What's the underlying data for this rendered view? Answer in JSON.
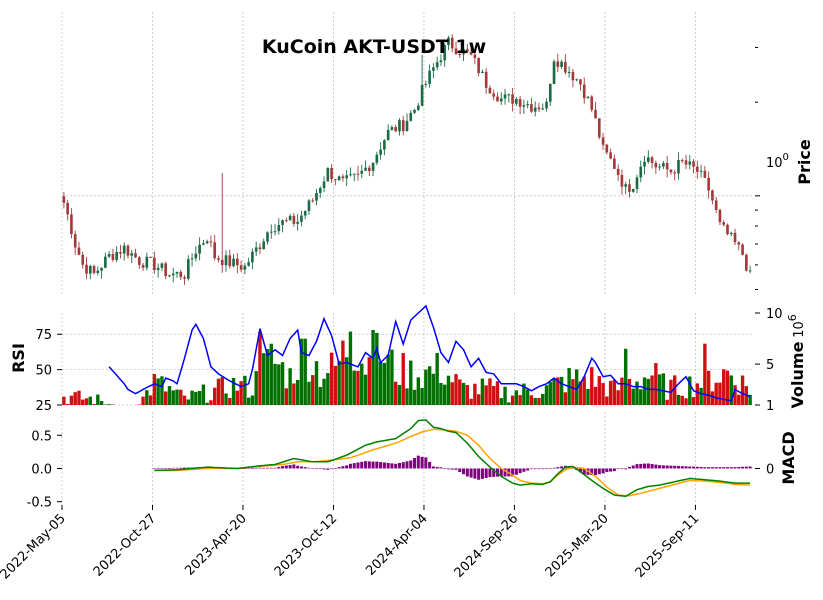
{
  "chart_data": {
    "type": "candlestick",
    "title": "KuCoin AKT-USDT 1w",
    "x_tick_labels": [
      "2022-May-05",
      "2022-Oct-27",
      "2023-Apr-20",
      "2023-Oct-12",
      "2024-Apr-04",
      "2024-Sep-26",
      "2025-Mar-20",
      "2025-Sep-11"
    ],
    "price_panel": {
      "ylabel": "Price",
      "scale": "log",
      "ylim": [
        0.48,
        3.9
      ],
      "tick_label": {
        "base": "10",
        "exp": "0"
      },
      "up_color": "#1d6b45",
      "down_color": "#a33a3a",
      "anchors": [
        [
          0,
          0.95
        ],
        [
          3,
          0.7
        ],
        [
          5,
          0.6
        ],
        [
          8,
          0.56
        ],
        [
          12,
          0.64
        ],
        [
          16,
          0.68
        ],
        [
          20,
          0.62
        ],
        [
          24,
          0.6
        ],
        [
          28,
          0.56
        ],
        [
          32,
          0.56
        ],
        [
          35,
          0.67
        ],
        [
          38,
          0.74
        ],
        [
          40,
          0.64
        ],
        [
          44,
          0.61
        ],
        [
          48,
          0.59
        ],
        [
          52,
          0.7
        ],
        [
          55,
          0.8
        ],
        [
          58,
          0.82
        ],
        [
          62,
          0.83
        ],
        [
          66,
          0.97
        ],
        [
          70,
          1.2
        ],
        [
          74,
          1.1
        ],
        [
          78,
          1.15
        ],
        [
          82,
          1.3
        ],
        [
          86,
          1.6
        ],
        [
          90,
          1.7
        ],
        [
          93,
          1.9
        ],
        [
          96,
          2.3
        ],
        [
          99,
          2.7
        ],
        [
          102,
          3.1
        ],
        [
          104,
          3.0
        ],
        [
          108,
          2.8
        ],
        [
          112,
          2.3
        ],
        [
          116,
          2.05
        ],
        [
          120,
          2.05
        ],
        [
          124,
          1.95
        ],
        [
          128,
          1.95
        ],
        [
          130,
          2.8
        ],
        [
          133,
          2.6
        ],
        [
          137,
          2.3
        ],
        [
          140,
          1.9
        ],
        [
          143,
          1.4
        ],
        [
          146,
          1.25
        ],
        [
          149,
          1.05
        ],
        [
          151,
          1.1
        ],
        [
          154,
          1.35
        ],
        [
          157,
          1.25
        ],
        [
          161,
          1.2
        ],
        [
          164,
          1.28
        ],
        [
          168,
          1.2
        ],
        [
          171,
          1.05
        ],
        [
          174,
          0.8
        ],
        [
          178,
          0.7
        ],
        [
          180,
          0.65
        ],
        [
          182,
          0.55
        ]
      ]
    },
    "volume_panel": {
      "ylabel": "Volume",
      "scale_label": {
        "base": "10",
        "exp": "6"
      },
      "ylim": [
        1,
        10
      ],
      "ticks": [
        1,
        5,
        10
      ],
      "up_color": "#007000",
      "down_color": "#d01010"
    },
    "rsi_panel": {
      "ylabel": "RSI",
      "ylim": [
        25,
        90
      ],
      "ticks": [
        25,
        50,
        75
      ],
      "color": "#0000ff",
      "anchors": [
        [
          12,
          52
        ],
        [
          14,
          46
        ],
        [
          16,
          40
        ],
        [
          17,
          36
        ],
        [
          19,
          33
        ],
        [
          21,
          36
        ],
        [
          24,
          40
        ],
        [
          26,
          38
        ],
        [
          27,
          44
        ],
        [
          29,
          42
        ],
        [
          30,
          40
        ],
        [
          32,
          58
        ],
        [
          34,
          78
        ],
        [
          35,
          82
        ],
        [
          37,
          72
        ],
        [
          39,
          52
        ],
        [
          41,
          47
        ],
        [
          44,
          42
        ],
        [
          47,
          38
        ],
        [
          49,
          40
        ],
        [
          50,
          50
        ],
        [
          52,
          79
        ],
        [
          54,
          60
        ],
        [
          56,
          64
        ],
        [
          58,
          60
        ],
        [
          60,
          72
        ],
        [
          62,
          78
        ],
        [
          63,
          62
        ],
        [
          65,
          60
        ],
        [
          67,
          70
        ],
        [
          69,
          86
        ],
        [
          71,
          74
        ],
        [
          73,
          54
        ],
        [
          75,
          55
        ],
        [
          78,
          52
        ],
        [
          80,
          62
        ],
        [
          82,
          58
        ],
        [
          83,
          65
        ],
        [
          84,
          55
        ],
        [
          86,
          60
        ],
        [
          88,
          84
        ],
        [
          90,
          68
        ],
        [
          92,
          85
        ],
        [
          94,
          90
        ],
        [
          96,
          95
        ],
        [
          98,
          80
        ],
        [
          100,
          62
        ],
        [
          102,
          55
        ],
        [
          104,
          70
        ],
        [
          106,
          64
        ],
        [
          108,
          52
        ],
        [
          110,
          58
        ],
        [
          112,
          48
        ],
        [
          114,
          47
        ],
        [
          116,
          40
        ],
        [
          118,
          40
        ],
        [
          120,
          40
        ],
        [
          122,
          38
        ],
        [
          124,
          35
        ],
        [
          126,
          38
        ],
        [
          128,
          40
        ],
        [
          130,
          44
        ],
        [
          132,
          40
        ],
        [
          134,
          38
        ],
        [
          136,
          36
        ],
        [
          138,
          45
        ],
        [
          140,
          58
        ],
        [
          141,
          55
        ],
        [
          143,
          45
        ],
        [
          145,
          46
        ],
        [
          147,
          40
        ],
        [
          149,
          40
        ],
        [
          151,
          38
        ],
        [
          153,
          38
        ],
        [
          155,
          36
        ],
        [
          157,
          36
        ],
        [
          159,
          35
        ],
        [
          161,
          34
        ],
        [
          163,
          40
        ],
        [
          165,
          45
        ],
        [
          167,
          35
        ],
        [
          169,
          33
        ],
        [
          171,
          32
        ],
        [
          173,
          30
        ],
        [
          175,
          29
        ],
        [
          177,
          28
        ],
        [
          178,
          36
        ],
        [
          180,
          33
        ],
        [
          182,
          31
        ]
      ]
    },
    "macd_panel": {
      "ylabel": "MACD",
      "ylim": [
        -0.55,
        0.85
      ],
      "left_ticks": [
        0.5,
        0.0,
        -0.5
      ],
      "right_ticks": [
        0
      ],
      "macd_color": "#008000",
      "signal_color": "#ffa500",
      "hist_color": "#800080",
      "macd_anchors": [
        [
          24,
          -0.03
        ],
        [
          30,
          -0.02
        ],
        [
          38,
          0.02
        ],
        [
          46,
          0.0
        ],
        [
          52,
          0.04
        ],
        [
          56,
          0.06
        ],
        [
          61,
          0.15
        ],
        [
          66,
          0.1
        ],
        [
          70,
          0.1
        ],
        [
          75,
          0.2
        ],
        [
          80,
          0.35
        ],
        [
          83,
          0.4
        ],
        [
          88,
          0.45
        ],
        [
          92,
          0.6
        ],
        [
          94,
          0.72
        ],
        [
          96,
          0.73
        ],
        [
          98,
          0.62
        ],
        [
          100,
          0.6
        ],
        [
          102,
          0.56
        ],
        [
          104,
          0.54
        ],
        [
          107,
          0.38
        ],
        [
          110,
          0.18
        ],
        [
          113,
          0.02
        ],
        [
          116,
          -0.12
        ],
        [
          119,
          -0.22
        ],
        [
          121,
          -0.25
        ],
        [
          124,
          -0.23
        ],
        [
          127,
          -0.24
        ],
        [
          129,
          -0.2
        ],
        [
          131,
          -0.08
        ],
        [
          133,
          0.02
        ],
        [
          135,
          0.03
        ],
        [
          137,
          -0.05
        ],
        [
          140,
          -0.18
        ],
        [
          143,
          -0.3
        ],
        [
          146,
          -0.4
        ],
        [
          149,
          -0.42
        ],
        [
          152,
          -0.32
        ],
        [
          155,
          -0.27
        ],
        [
          158,
          -0.25
        ],
        [
          162,
          -0.2
        ],
        [
          166,
          -0.15
        ],
        [
          170,
          -0.17
        ],
        [
          174,
          -0.19
        ],
        [
          178,
          -0.22
        ],
        [
          182,
          -0.22
        ]
      ],
      "signal_anchors": [
        [
          24,
          -0.03
        ],
        [
          30,
          -0.03
        ],
        [
          38,
          0.0
        ],
        [
          46,
          0.0
        ],
        [
          52,
          0.03
        ],
        [
          58,
          0.06
        ],
        [
          62,
          0.1
        ],
        [
          66,
          0.1
        ],
        [
          70,
          0.12
        ],
        [
          76,
          0.16
        ],
        [
          82,
          0.28
        ],
        [
          88,
          0.38
        ],
        [
          92,
          0.48
        ],
        [
          95,
          0.55
        ],
        [
          98,
          0.59
        ],
        [
          101,
          0.58
        ],
        [
          104,
          0.56
        ],
        [
          107,
          0.5
        ],
        [
          110,
          0.35
        ],
        [
          113,
          0.15
        ],
        [
          116,
          0.0
        ],
        [
          119,
          -0.1
        ],
        [
          121,
          -0.18
        ],
        [
          124,
          -0.22
        ],
        [
          127,
          -0.23
        ],
        [
          129,
          -0.2
        ],
        [
          131,
          -0.1
        ],
        [
          133,
          -0.02
        ],
        [
          135,
          0.02
        ],
        [
          138,
          0.0
        ],
        [
          141,
          -0.12
        ],
        [
          144,
          -0.28
        ],
        [
          147,
          -0.4
        ],
        [
          150,
          -0.41
        ],
        [
          154,
          -0.36
        ],
        [
          158,
          -0.3
        ],
        [
          162,
          -0.24
        ],
        [
          166,
          -0.18
        ],
        [
          170,
          -0.19
        ],
        [
          174,
          -0.21
        ],
        [
          178,
          -0.24
        ],
        [
          182,
          -0.25
        ]
      ]
    }
  }
}
